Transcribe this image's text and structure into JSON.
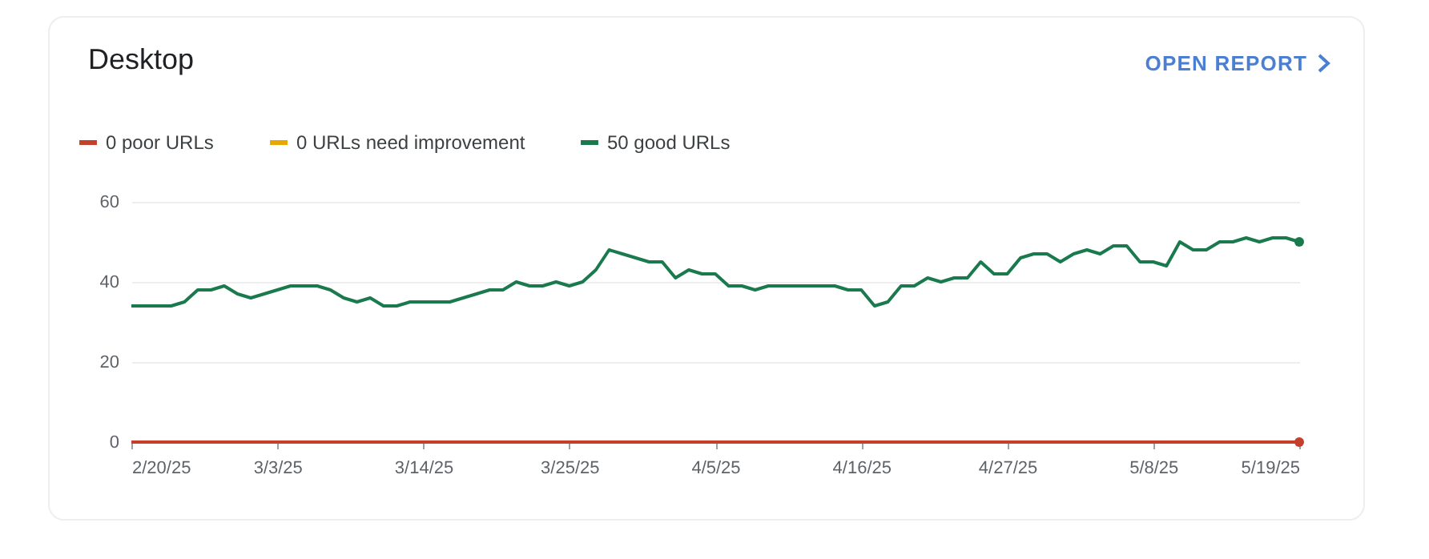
{
  "chart_data": {
    "type": "line",
    "title": "Desktop",
    "annotations": [
      "OPEN REPORT"
    ],
    "x": [
      "--02-20",
      "--02-21",
      "--02-22",
      "--02-23",
      "--02-24",
      "--02-25",
      "--02-26",
      "--02-27",
      "--02-28",
      "--03-01",
      "--03-02",
      "--03-03",
      "--03-04",
      "--03-05",
      "--03-06",
      "--03-07",
      "--03-08",
      "--03-09",
      "--03-10",
      "--03-11",
      "--03-12",
      "--03-13",
      "--03-14",
      "--03-15",
      "--03-16",
      "--03-17",
      "--03-18",
      "--03-19",
      "--03-20",
      "--03-21",
      "--03-22",
      "--03-23",
      "--03-24",
      "--03-25",
      "--03-26",
      "--03-27",
      "--03-28",
      "--03-29",
      "--03-30",
      "--03-31",
      "--04-01",
      "--04-02",
      "--04-03",
      "--04-04",
      "--04-05",
      "--04-06",
      "--04-07",
      "--04-08",
      "--04-09",
      "--04-10",
      "--04-11",
      "--04-12",
      "--04-13",
      "--04-14",
      "--04-15",
      "--04-16",
      "--04-17",
      "--04-18",
      "--04-19",
      "--04-20",
      "--04-21",
      "--04-22",
      "--04-23",
      "--04-24",
      "--04-25",
      "--04-26",
      "--04-27",
      "--04-28",
      "--04-29",
      "--04-30",
      "--05-01",
      "--05-02",
      "--05-03",
      "--05-04",
      "--05-05",
      "--05-06",
      "--05-07",
      "--05-08",
      "--05-09",
      "--05-10",
      "--05-11",
      "--05-12",
      "--05-13",
      "--05-14",
      "--05-15",
      "--05-16",
      "--05-17",
      "--05-18",
      "--05-19"
    ],
    "xlim": [
      "--02-20",
      "--05-19"
    ],
    "xticks": [
      {
        "value": "--02-20",
        "label": "2/20/25"
      },
      {
        "value": "--03-03",
        "label": "3/3/25"
      },
      {
        "value": "--03-14",
        "label": "3/14/25"
      },
      {
        "value": "--03-25",
        "label": "3/25/25"
      },
      {
        "value": "--04-05",
        "label": "4/5/25"
      },
      {
        "value": "--04-16",
        "label": "4/16/25"
      },
      {
        "value": "--04-27",
        "label": "4/27/25"
      },
      {
        "value": "--05-08",
        "label": "5/8/25"
      },
      {
        "value": "--05-19",
        "label": "5/19/25"
      }
    ],
    "ylim": [
      0,
      60
    ],
    "yticks": [
      0,
      20,
      40,
      60
    ],
    "grid": "y",
    "legend": "top left",
    "series": [
      {
        "name": "0 poor URLs",
        "color": "#c5402a",
        "values": [
          0,
          0,
          0,
          0,
          0,
          0,
          0,
          0,
          0,
          0,
          0,
          0,
          0,
          0,
          0,
          0,
          0,
          0,
          0,
          0,
          0,
          0,
          0,
          0,
          0,
          0,
          0,
          0,
          0,
          0,
          0,
          0,
          0,
          0,
          0,
          0,
          0,
          0,
          0,
          0,
          0,
          0,
          0,
          0,
          0,
          0,
          0,
          0,
          0,
          0,
          0,
          0,
          0,
          0,
          0,
          0,
          0,
          0,
          0,
          0,
          0,
          0,
          0,
          0,
          0,
          0,
          0,
          0,
          0,
          0,
          0,
          0,
          0,
          0,
          0,
          0,
          0,
          0,
          0,
          0,
          0,
          0,
          0,
          0,
          0,
          0,
          0,
          0,
          0
        ]
      },
      {
        "name": "0 URLs need improvement",
        "color": "#e8a600",
        "values": [
          null,
          null,
          null,
          null,
          null,
          null,
          null,
          null,
          null,
          null,
          null,
          null,
          null,
          null,
          null,
          null,
          null,
          null,
          null,
          null,
          null,
          null,
          null,
          null,
          null,
          null,
          null,
          null,
          null,
          null,
          null,
          null,
          null,
          null,
          null,
          null,
          null,
          null,
          null,
          null,
          null,
          null,
          null,
          null,
          null,
          null,
          null,
          null,
          null,
          null,
          null,
          null,
          null,
          null,
          null,
          null,
          null,
          null,
          null,
          null,
          null,
          null,
          null,
          null,
          null,
          null,
          null,
          null,
          null,
          null,
          null,
          null,
          null,
          null,
          null,
          null,
          null,
          null,
          null,
          null,
          null,
          null,
          null,
          null,
          null,
          null,
          null,
          null,
          null
        ]
      },
      {
        "name": "50 good URLs",
        "color": "#1b7a4d",
        "values": [
          34,
          34,
          34,
          34,
          35,
          38,
          38,
          39,
          37,
          36,
          37,
          38,
          39,
          39,
          39,
          38,
          36,
          35,
          36,
          34,
          34,
          35,
          35,
          35,
          35,
          36,
          37,
          38,
          38,
          40,
          39,
          39,
          40,
          39,
          40,
          43,
          48,
          47,
          46,
          45,
          45,
          41,
          43,
          42,
          42,
          39,
          39,
          38,
          39,
          39,
          39,
          39,
          39,
          39,
          38,
          38,
          34,
          35,
          39,
          39,
          41,
          40,
          41,
          41,
          45,
          42,
          42,
          46,
          47,
          47,
          45,
          47,
          48,
          47,
          49,
          49,
          45,
          45,
          44,
          50,
          48,
          48,
          50,
          50,
          51,
          50,
          51,
          51,
          50
        ]
      }
    ]
  }
}
